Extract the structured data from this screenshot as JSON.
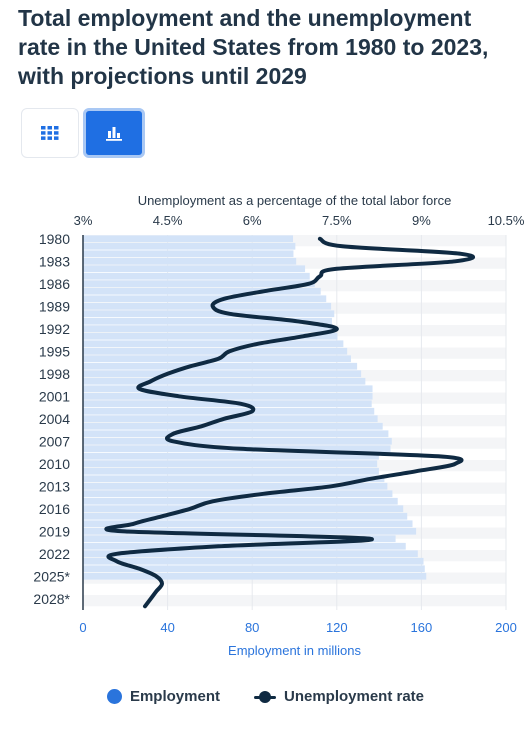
{
  "header": {
    "title": "Total employment and the unemployment rate in the United States from 1980 to 2023, with projections until 2029"
  },
  "view_toggle": {
    "table_icon": "grid-icon",
    "chart_icon": "bar-chart-icon",
    "active": "chart",
    "active_color": "#1f6fe3"
  },
  "legend": {
    "employment_label": "Employment",
    "unemployment_label": "Unemployment rate"
  },
  "chart_data": {
    "type": "bar",
    "orientation": "horizontal",
    "categories": [
      "1980",
      "1981",
      "1982",
      "1983",
      "1984",
      "1985",
      "1986",
      "1987",
      "1988",
      "1989",
      "1990",
      "1991",
      "1992",
      "1993",
      "1994",
      "1995",
      "1996",
      "1997",
      "1998",
      "1999",
      "2000",
      "2001",
      "2002",
      "2003",
      "2004",
      "2005",
      "2006",
      "2007",
      "2008",
      "2009",
      "2010",
      "2011",
      "2012",
      "2013",
      "2014",
      "2015",
      "2016",
      "2017",
      "2018",
      "2019",
      "2020",
      "2021",
      "2022",
      "2023",
      "2024*",
      "2025*",
      "2026*",
      "2027*",
      "2028*",
      "2029*"
    ],
    "category_labels": [
      "1980",
      "1983",
      "1986",
      "1989",
      "1992",
      "1995",
      "1998",
      "2001",
      "2004",
      "2007",
      "2010",
      "2013",
      "2016",
      "2019",
      "2022",
      "2025*",
      "2028*"
    ],
    "xlabel": "Employment in millions",
    "secondary_axis_label": "Unemployment as a percentage of the total labor force",
    "x_ticks": [
      0,
      40,
      80,
      120,
      160,
      200
    ],
    "xlim": [
      0,
      200
    ],
    "secondary_ticks": [
      "3%",
      "4.5%",
      "6%",
      "7.5%",
      "9%",
      "10.5%"
    ],
    "secondary_tick_values": [
      3,
      4.5,
      6,
      7.5,
      9,
      10.5
    ],
    "secondary_lim": [
      3,
      10.5
    ],
    "grid": true,
    "legend_position": "bottom",
    "series": [
      {
        "name": "Employment",
        "type": "bar",
        "axis": "bottom",
        "color": "#d3e3f8",
        "values": [
          99.3,
          100.4,
          99.5,
          100.8,
          105.0,
          107.2,
          109.6,
          112.4,
          115.0,
          117.3,
          118.8,
          117.7,
          118.5,
          120.3,
          123.1,
          124.9,
          126.7,
          129.6,
          131.5,
          133.5,
          136.9,
          136.9,
          136.5,
          137.7,
          139.3,
          141.7,
          144.4,
          146.0,
          145.4,
          139.9,
          139.1,
          139.9,
          142.5,
          143.9,
          146.3,
          148.8,
          151.4,
          153.3,
          155.8,
          157.5,
          147.8,
          152.6,
          158.3,
          161.0,
          161.6,
          162.3,
          null,
          null,
          null,
          null
        ]
      },
      {
        "name": "Unemployment rate",
        "type": "line",
        "axis": "top",
        "color": "#0f2a42",
        "values": [
          7.2,
          7.6,
          9.7,
          9.6,
          7.5,
          7.2,
          7.0,
          6.2,
          5.5,
          5.3,
          5.6,
          6.8,
          7.5,
          6.9,
          6.1,
          5.6,
          5.4,
          4.9,
          4.5,
          4.2,
          4.0,
          4.7,
          5.8,
          6.0,
          5.5,
          5.1,
          4.6,
          4.6,
          5.8,
          9.3,
          9.6,
          8.9,
          8.1,
          7.4,
          6.2,
          5.3,
          4.9,
          4.4,
          3.9,
          3.7,
          8.1,
          5.4,
          3.6,
          3.6,
          4.0,
          4.3,
          4.4,
          4.3,
          4.2,
          4.1
        ]
      }
    ]
  }
}
